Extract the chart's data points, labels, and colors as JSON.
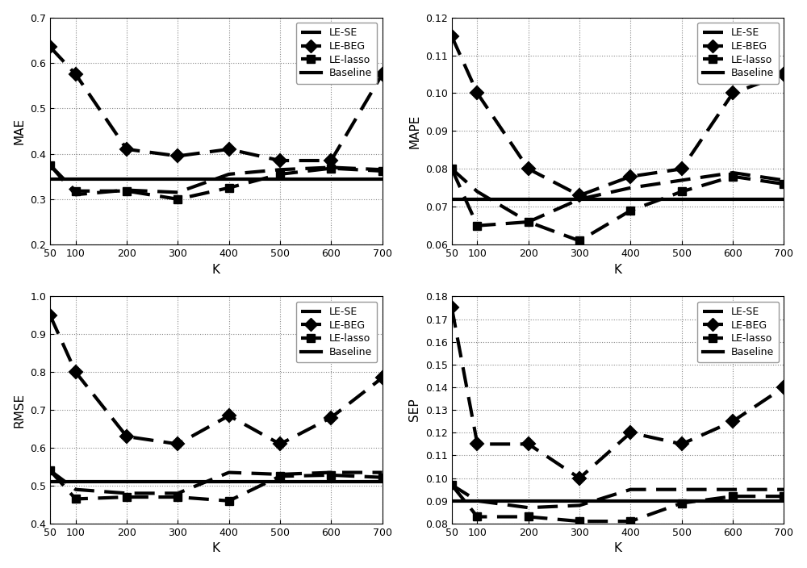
{
  "K": [
    50,
    100,
    200,
    300,
    400,
    500,
    600,
    700
  ],
  "MAE": {
    "LE_SE": [
      0.375,
      0.31,
      0.32,
      0.315,
      0.355,
      0.365,
      0.37,
      0.365
    ],
    "LE_BEG": [
      0.635,
      0.575,
      0.41,
      0.395,
      0.41,
      0.385,
      0.385,
      0.575
    ],
    "LE_lasso": [
      0.375,
      0.318,
      0.318,
      0.3,
      0.325,
      0.355,
      0.368,
      0.362
    ],
    "Baseline": 0.345
  },
  "MAPE": {
    "LE_SE": [
      0.08,
      0.074,
      0.066,
      0.072,
      0.075,
      0.077,
      0.079,
      0.077
    ],
    "LE_BEG": [
      0.115,
      0.1,
      0.08,
      0.073,
      0.078,
      0.08,
      0.1,
      0.105
    ],
    "LE_lasso": [
      0.08,
      0.065,
      0.066,
      0.061,
      0.069,
      0.074,
      0.078,
      0.076
    ],
    "Baseline": 0.072
  },
  "RMSE": {
    "LE_SE": [
      0.54,
      0.49,
      0.48,
      0.48,
      0.535,
      0.53,
      0.535,
      0.535
    ],
    "LE_BEG": [
      0.95,
      0.8,
      0.63,
      0.61,
      0.685,
      0.61,
      0.68,
      0.785
    ],
    "LE_lasso": [
      0.54,
      0.465,
      0.47,
      0.47,
      0.46,
      0.525,
      0.528,
      0.522
    ],
    "Baseline": 0.51
  },
  "SEP": {
    "LE_SE": [
      0.097,
      0.09,
      0.087,
      0.088,
      0.095,
      0.095,
      0.095,
      0.095
    ],
    "LE_BEG": [
      0.175,
      0.115,
      0.115,
      0.1,
      0.12,
      0.115,
      0.125,
      0.14
    ],
    "LE_lasso": [
      0.097,
      0.083,
      0.083,
      0.081,
      0.081,
      0.089,
      0.092,
      0.092
    ],
    "Baseline": 0.09
  },
  "ylims": {
    "MAE": [
      0.2,
      0.7
    ],
    "MAPE": [
      0.06,
      0.12
    ],
    "RMSE": [
      0.4,
      1.0
    ],
    "SEP": [
      0.08,
      0.18
    ]
  },
  "yticks": {
    "MAE": [
      0.2,
      0.3,
      0.4,
      0.5,
      0.6,
      0.7
    ],
    "MAPE": [
      0.06,
      0.07,
      0.08,
      0.09,
      0.1,
      0.11,
      0.12
    ],
    "RMSE": [
      0.4,
      0.5,
      0.6,
      0.7,
      0.8,
      0.9,
      1.0
    ],
    "SEP": [
      0.08,
      0.09,
      0.1,
      0.11,
      0.12,
      0.13,
      0.14,
      0.15,
      0.16,
      0.17,
      0.18
    ]
  },
  "xlabel": "K",
  "subplot_labels": [
    "MAE",
    "MAPE",
    "RMSE",
    "SEP"
  ]
}
